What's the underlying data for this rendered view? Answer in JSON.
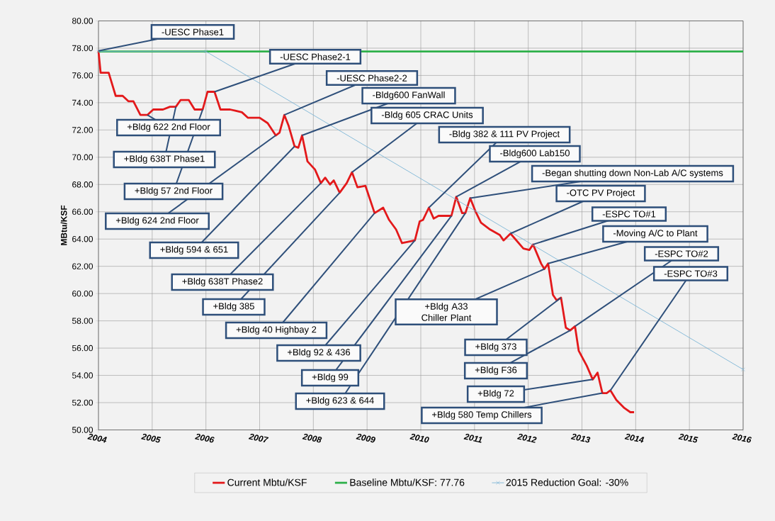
{
  "chart_data": {
    "type": "line",
    "ylabel": "MBtu/KSF",
    "xlim": [
      2004,
      2016
    ],
    "ylim": [
      50,
      80
    ],
    "xticks": [
      2004,
      2005,
      2006,
      2007,
      2008,
      2009,
      2010,
      2011,
      2012,
      2013,
      2014,
      2015,
      2016
    ],
    "yticks": [
      {
        "value": 50,
        "label": "50.00"
      },
      {
        "value": 52,
        "label": "52.00"
      },
      {
        "value": 54,
        "label": "54.00"
      },
      {
        "value": 56,
        "label": "56.00"
      },
      {
        "value": 58,
        "label": "58.00"
      },
      {
        "value": 60,
        "label": "60.00"
      },
      {
        "value": 62,
        "label": "62.00"
      },
      {
        "value": 64,
        "label": "64.00"
      },
      {
        "value": 66,
        "label": "66.00"
      },
      {
        "value": 68,
        "label": "68.00"
      },
      {
        "value": 70,
        "label": "70.00"
      },
      {
        "value": 72,
        "label": "72.00"
      },
      {
        "value": 74,
        "label": "74.00"
      },
      {
        "value": 76,
        "label": "76.00"
      },
      {
        "value": 78,
        "label": "78.00"
      },
      {
        "value": 80,
        "label": "80.00"
      }
    ],
    "grid": true,
    "legend": "bottom",
    "marker": "none",
    "series": [
      {
        "name": "Current Mbtu/KSF",
        "color": "#e3191b",
        "x": [
          2004.0,
          2004.04,
          2004.19,
          2004.32,
          2004.45,
          2004.56,
          2004.65,
          2004.78,
          2004.91,
          2005.02,
          2005.2,
          2005.33,
          2005.44,
          2005.53,
          2005.68,
          2005.79,
          2005.94,
          2006.03,
          2006.16,
          2006.27,
          2006.45,
          2006.56,
          2006.67,
          2006.78,
          2007.0,
          2007.15,
          2007.3,
          2007.37,
          2007.46,
          2007.54,
          2007.65,
          2007.72,
          2007.79,
          2007.89,
          2008.03,
          2008.14,
          2008.22,
          2008.31,
          2008.38,
          2008.49,
          2008.62,
          2008.72,
          2008.82,
          2008.97,
          2009.14,
          2009.3,
          2009.41,
          2009.54,
          2009.65,
          2009.89,
          2009.98,
          2010.04,
          2010.15,
          2010.24,
          2010.33,
          2010.57,
          2010.66,
          2010.77,
          2010.83,
          2010.92,
          2011.01,
          2011.12,
          2011.29,
          2011.47,
          2011.54,
          2011.67,
          2011.91,
          2012.02,
          2012.09,
          2012.24,
          2012.3,
          2012.37,
          2012.46,
          2012.53,
          2012.61,
          2012.7,
          2012.78,
          2012.87,
          2012.94,
          2013.09,
          2013.2,
          2013.29,
          2013.38,
          2013.46,
          2013.53,
          2013.64,
          2013.79,
          2013.9,
          2013.97
        ],
        "values": [
          77.8,
          76.2,
          76.2,
          74.5,
          74.5,
          74.1,
          74.1,
          73.1,
          73.1,
          73.5,
          73.5,
          73.7,
          73.7,
          74.2,
          74.2,
          73.5,
          73.5,
          74.8,
          74.8,
          73.5,
          73.5,
          73.4,
          73.3,
          72.9,
          72.9,
          72.5,
          71.6,
          71.8,
          73.1,
          72.3,
          70.8,
          70.7,
          71.6,
          69.7,
          69.1,
          68.1,
          68.5,
          68.0,
          68.3,
          67.4,
          68.1,
          68.9,
          67.8,
          67.9,
          65.9,
          66.3,
          65.4,
          64.7,
          63.7,
          63.9,
          65.3,
          65.4,
          66.3,
          65.5,
          65.7,
          65.7,
          67.1,
          65.9,
          65.9,
          67.0,
          66.1,
          65.2,
          64.7,
          64.3,
          63.9,
          64.4,
          63.3,
          63.2,
          63.6,
          62.2,
          61.8,
          62.2,
          59.9,
          59.5,
          59.7,
          57.5,
          57.3,
          57.6,
          55.8,
          54.7,
          53.7,
          54.2,
          52.7,
          52.7,
          52.9,
          52.2,
          51.6,
          51.3,
          51.3
        ]
      },
      {
        "name": "Baseline Mbtu/KSF: 77.76",
        "color": "#2eb04a",
        "x": [
          2004,
          2016
        ],
        "values": [
          77.76,
          77.76
        ]
      },
      {
        "name": "2015 Reduction Goal: -30%",
        "color": "#7db6d6",
        "marker": "cross",
        "x": [
          2004,
          2006,
          2016
        ],
        "values": [
          77.76,
          77.76,
          54.43
        ]
      }
    ],
    "annotations": [
      {
        "text": "-UESC Phase1",
        "x": 2004.0,
        "y": 77.8
      },
      {
        "text": "-UESC Phase2-1",
        "x": 2006.16,
        "y": 74.8
      },
      {
        "text": "-UESC Phase2-2",
        "x": 2007.46,
        "y": 73.1
      },
      {
        "text": "-Bldg600 FanWall",
        "x": 2007.79,
        "y": 71.6
      },
      {
        "text": "-Bldg 605 CRAC Units",
        "x": 2008.72,
        "y": 68.9
      },
      {
        "text": "-Bldg 382 & 111 PV Project",
        "x": 2010.15,
        "y": 66.3
      },
      {
        "text": "-Bldg600 Lab150",
        "x": 2010.66,
        "y": 67.1
      },
      {
        "text": "-Began shutting down Non-Lab A/C systems",
        "x": 2010.92,
        "y": 67.0
      },
      {
        "text": "-OTC PV Project",
        "x": 2011.67,
        "y": 64.4
      },
      {
        "text": "-ESPC TO#1",
        "x": 2012.09,
        "y": 63.6
      },
      {
        "text": "-Moving A/C to Plant",
        "x": 2012.37,
        "y": 62.2
      },
      {
        "text": "-ESPC TO#2",
        "x": 2012.87,
        "y": 57.6
      },
      {
        "text": "-ESPC TO#3",
        "x": 2013.53,
        "y": 52.9
      },
      {
        "text": "+Bldg 622 2nd Floor",
        "x": 2004.91,
        "y": 73.1
      },
      {
        "text": "+Bldg 638T Phase1",
        "x": 2005.44,
        "y": 73.7
      },
      {
        "text": "+Bldg 57 2nd Floor",
        "x": 2005.94,
        "y": 73.5
      },
      {
        "text": "+Bldg 624 2nd Floor",
        "x": 2007.3,
        "y": 71.6
      },
      {
        "text": "+Bldg 594 & 651",
        "x": 2007.65,
        "y": 70.8
      },
      {
        "text": "+Bldg 638T Phase2",
        "x": 2008.14,
        "y": 68.1
      },
      {
        "text": "+Bldg 385",
        "x": 2008.49,
        "y": 67.4
      },
      {
        "text": "+Bldg 40 Highbay 2",
        "x": 2009.14,
        "y": 65.9
      },
      {
        "text": "+Bldg 92 & 436",
        "x": 2009.89,
        "y": 63.9
      },
      {
        "text": "+Bldg 99",
        "x": 2010.57,
        "y": 65.7
      },
      {
        "text": "+Bldg 623 & 644",
        "x": 2010.83,
        "y": 65.9
      },
      {
        "text": "+Bldg A33 Chiller Plant",
        "x": 2012.3,
        "y": 61.8
      },
      {
        "text": "+Bldg 373",
        "x": 2012.61,
        "y": 59.7
      },
      {
        "text": "+Bldg F36",
        "x": 2012.78,
        "y": 57.3
      },
      {
        "text": "+Bldg 72",
        "x": 2013.2,
        "y": 53.7
      },
      {
        "text": "+Bldg 580 Temp Chillers",
        "x": 2013.38,
        "y": 52.7
      }
    ]
  }
}
